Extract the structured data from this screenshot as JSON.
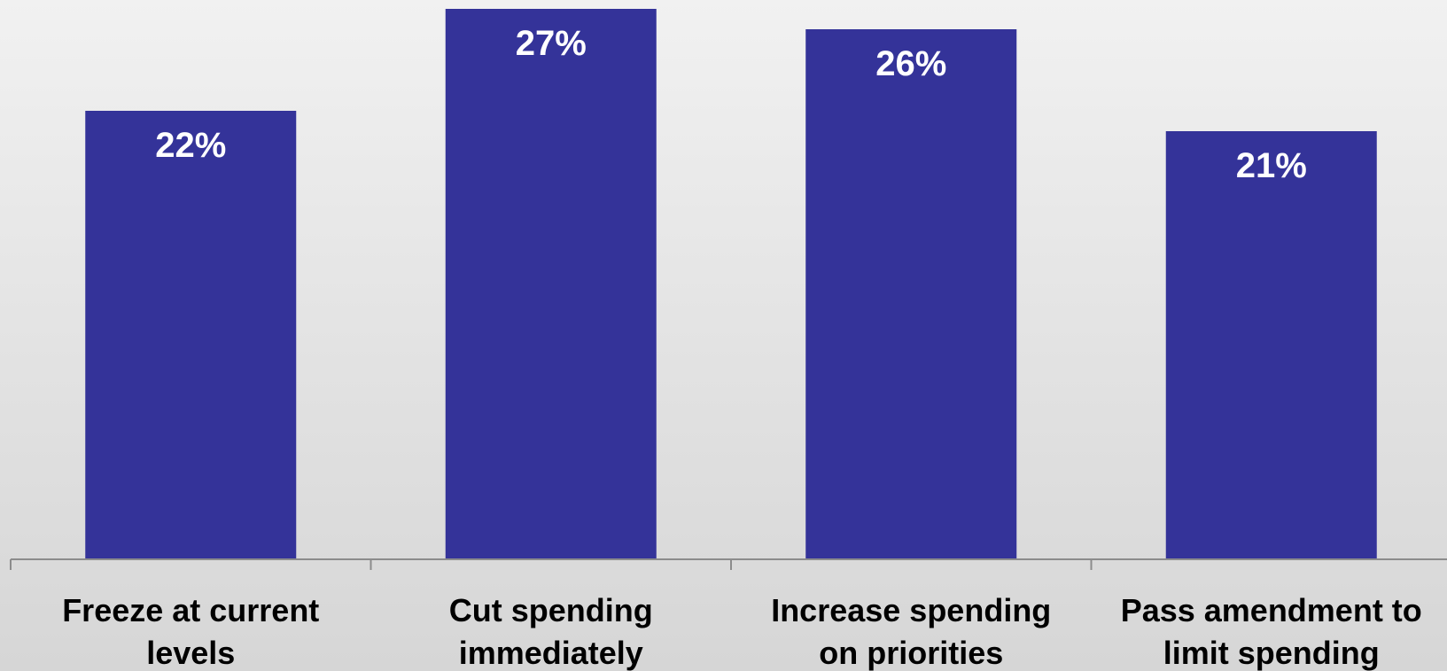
{
  "chart_data": {
    "type": "bar",
    "categories": [
      [
        "Freeze at current",
        "levels"
      ],
      [
        "Cut spending",
        "immediately"
      ],
      [
        "Increase spending",
        "on priorities"
      ],
      [
        "Pass amendment to",
        "limit spending"
      ]
    ],
    "values": [
      22,
      27,
      26,
      21
    ],
    "value_labels": [
      "22%",
      "27%",
      "26%",
      "21%"
    ],
    "title": "",
    "xlabel": "",
    "ylabel": "",
    "ylim": [
      0,
      27
    ],
    "grid": false,
    "legend": "none",
    "colors": {
      "bar": "#343399",
      "axis": "#8c8c8c",
      "value_label": "#ffffff",
      "category_label": "#000000"
    }
  }
}
